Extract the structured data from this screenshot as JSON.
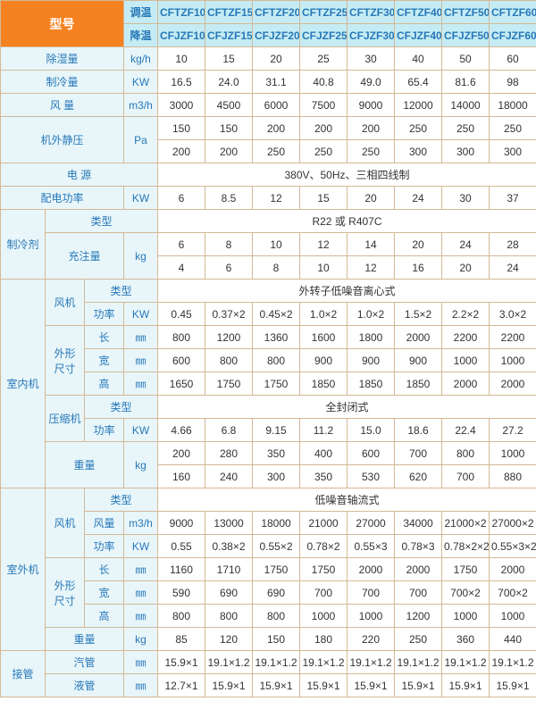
{
  "colors": {
    "orange": "#f58220",
    "blueHdr": "#c5ecf4",
    "blueTxt": "#2878b8",
    "labelBg": "#e8f6fa",
    "border": "#d4b896"
  },
  "hdr": {
    "model": "型号",
    "mode_warm": "调温",
    "mode_cool": "降温",
    "models_t": [
      "CFTZF10",
      "CFTZF15",
      "CFTZF20",
      "CFTZF25",
      "CFTZF30",
      "CFTZF40",
      "CFTZF50",
      "CFTZF60"
    ],
    "models_j": [
      "CFJZF10",
      "CFJZF15",
      "CFJZF20",
      "CFJZF25",
      "CFJZF30",
      "CFJZF40",
      "CFJZF50",
      "CFJZF60"
    ]
  },
  "rows": {
    "dehumid": {
      "label": "除湿量",
      "unit": "kg/h",
      "vals": [
        "10",
        "15",
        "20",
        "25",
        "30",
        "40",
        "50",
        "60"
      ]
    },
    "cooling": {
      "label": "制冷量",
      "unit": "KW",
      "vals": [
        "16.5",
        "24.0",
        "31.1",
        "40.8",
        "49.0",
        "65.4",
        "81.6",
        "98"
      ]
    },
    "airflow": {
      "label": "风  量",
      "unit": "m3/h",
      "vals": [
        "3000",
        "4500",
        "6000",
        "7500",
        "9000",
        "12000",
        "14000",
        "18000"
      ]
    },
    "esp": {
      "label": "机外静压",
      "unit": "Pa",
      "r1": [
        "150",
        "150",
        "200",
        "200",
        "200",
        "250",
        "250",
        "250"
      ],
      "r2": [
        "200",
        "200",
        "250",
        "250",
        "250",
        "300",
        "300",
        "300"
      ]
    },
    "power_src": {
      "label": "电  源",
      "val": "380V、50Hz、三相四线制"
    },
    "elec_power": {
      "label": "配电功率",
      "unit": "KW",
      "vals": [
        "6",
        "8.5",
        "12",
        "15",
        "20",
        "24",
        "30",
        "37"
      ]
    },
    "refrigerant": {
      "label": "制冷剂",
      "type_lbl": "类型",
      "type_val": "R22 或 R407C",
      "charge_lbl": "充注量",
      "charge_unit": "kg",
      "r1": [
        "6",
        "8",
        "10",
        "12",
        "14",
        "20",
        "24",
        "28"
      ],
      "r2": [
        "4",
        "6",
        "8",
        "10",
        "12",
        "16",
        "20",
        "24"
      ]
    },
    "indoor": {
      "label": "室内机",
      "fan": {
        "label": "风机",
        "type_lbl": "类型",
        "type_val": "外转子低噪音离心式",
        "power_lbl": "功率",
        "power_unit": "KW",
        "power": [
          "0.45",
          "0.37×2",
          "0.45×2",
          "1.0×2",
          "1.0×2",
          "1.5×2",
          "2.2×2",
          "3.0×2"
        ]
      },
      "dim": {
        "label": "外形\n尺寸",
        "len_lbl": "长",
        "len_unit": "㎜",
        "len": [
          "800",
          "1200",
          "1360",
          "1600",
          "1800",
          "2000",
          "2200",
          "2200"
        ],
        "wid_lbl": "宽",
        "wid_unit": "㎜",
        "wid": [
          "600",
          "800",
          "800",
          "900",
          "900",
          "900",
          "1000",
          "1000"
        ],
        "hgt_lbl": "高",
        "hgt_unit": "㎜",
        "hgt": [
          "1650",
          "1750",
          "1750",
          "1850",
          "1850",
          "1850",
          "2000",
          "2000"
        ]
      },
      "comp": {
        "label": "压缩机",
        "type_lbl": "类型",
        "type_val": "全封闭式",
        "power_lbl": "功率",
        "power_unit": "KW",
        "power": [
          "4.66",
          "6.8",
          "9.15",
          "11.2",
          "15.0",
          "18.6",
          "22.4",
          "27.2"
        ]
      },
      "weight": {
        "label": "重量",
        "unit": "kg",
        "r1": [
          "200",
          "280",
          "350",
          "400",
          "600",
          "700",
          "800",
          "1000"
        ],
        "r2": [
          "160",
          "240",
          "300",
          "350",
          "530",
          "620",
          "700",
          "880"
        ]
      }
    },
    "outdoor": {
      "label": "室外机",
      "fan": {
        "label": "风机",
        "type_lbl": "类型",
        "type_val": "低噪音轴流式",
        "flow_lbl": "风量",
        "flow_unit": "m3/h",
        "flow": [
          "9000",
          "13000",
          "18000",
          "21000",
          "27000",
          "34000",
          "21000×2",
          "27000×2"
        ],
        "power_lbl": "功率",
        "power_unit": "KW",
        "power": [
          "0.55",
          "0.38×2",
          "0.55×2",
          "0.78×2",
          "0.55×3",
          "0.78×3",
          "0.78×2×2",
          "0.55×3×2"
        ]
      },
      "dim": {
        "label": "外形\n尺寸",
        "len_lbl": "长",
        "len_unit": "㎜",
        "len": [
          "1160",
          "1710",
          "1750",
          "1750",
          "2000",
          "2000",
          "1750",
          "2000"
        ],
        "wid_lbl": "宽",
        "wid_unit": "㎜",
        "wid": [
          "590",
          "690",
          "690",
          "700",
          "700",
          "700",
          "700×2",
          "700×2"
        ],
        "hgt_lbl": "高",
        "hgt_unit": "㎜",
        "hgt": [
          "800",
          "800",
          "800",
          "1000",
          "1000",
          "1200",
          "1000",
          "1000"
        ]
      },
      "weight": {
        "label": "重量",
        "unit": "kg",
        "vals": [
          "85",
          "120",
          "150",
          "180",
          "220",
          "250",
          "360",
          "440"
        ]
      }
    },
    "pipe": {
      "label": "接管",
      "gas_lbl": "汽管",
      "gas_unit": "㎜",
      "gas": [
        "15.9×1",
        "19.1×1.2",
        "19.1×1.2",
        "19.1×1.2",
        "19.1×1.2",
        "19.1×1.2",
        "19.1×1.2",
        "19.1×1.2"
      ],
      "liq_lbl": "液管",
      "liq_unit": "㎜",
      "liq": [
        "12.7×1",
        "15.9×1",
        "15.9×1",
        "15.9×1",
        "15.9×1",
        "15.9×1",
        "15.9×1",
        "15.9×1"
      ]
    }
  }
}
